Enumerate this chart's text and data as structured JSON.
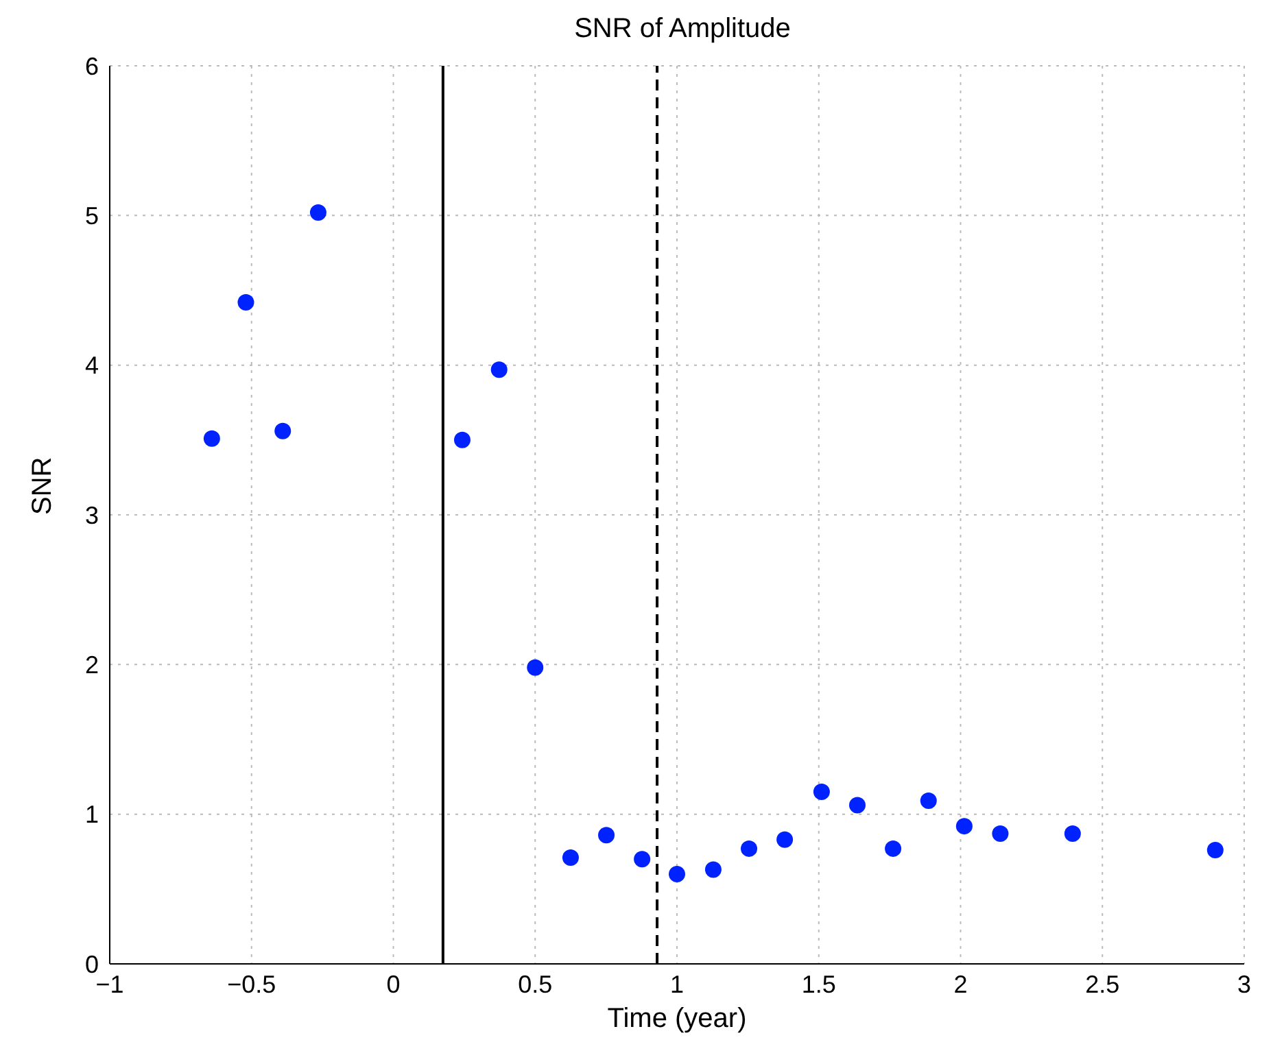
{
  "chart_data": {
    "type": "scatter",
    "title": "SNR of Amplitude",
    "xlabel": "Time (year)",
    "ylabel": "SNR",
    "x": [
      -0.64,
      -0.52,
      -0.39,
      -0.265,
      0.243,
      0.373,
      0.5,
      0.625,
      0.751,
      0.877,
      1.0,
      1.128,
      1.254,
      1.38,
      1.51,
      1.636,
      1.762,
      1.887,
      2.013,
      2.14,
      2.395,
      2.898
    ],
    "series": [
      {
        "color": "#0022ff",
        "values": [
          3.51,
          4.42,
          3.56,
          5.02,
          3.5,
          3.97,
          1.98,
          0.71,
          0.86,
          0.7,
          0.6,
          0.63,
          0.77,
          0.83,
          1.15,
          1.06,
          0.77,
          1.09,
          0.92,
          0.87,
          0.87,
          0.76
        ]
      }
    ],
    "xlim": [
      -1,
      3
    ],
    "xticks": [
      -1,
      -0.5,
      0,
      0.5,
      1,
      1.5,
      2,
      2.5,
      3
    ],
    "ylim": [
      0,
      6
    ],
    "yticks": [
      0,
      1,
      2,
      3,
      4,
      5,
      6
    ],
    "ref_lines": [
      {
        "axis": "x",
        "value": 0.175,
        "line_style": "solid",
        "color": "#000000"
      },
      {
        "axis": "x",
        "value": 0.93,
        "line_style": "dashed",
        "color": "#000000"
      }
    ],
    "grid": true,
    "marker": "circle",
    "legend": false
  }
}
